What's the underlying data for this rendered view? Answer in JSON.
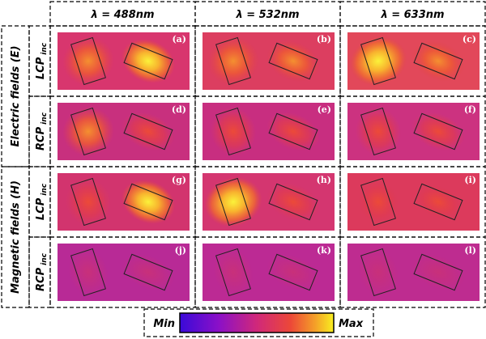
{
  "columns": [
    "λ = 488nm",
    "λ = 532nm",
    "λ = 633nm"
  ],
  "groups": [
    {
      "label": "Electric fields (E)",
      "rows": [
        {
          "label": "LCP",
          "sub": "inc",
          "panels": [
            "(a)",
            "(b)",
            "(c)"
          ]
        },
        {
          "label": "RCP",
          "sub": "inc",
          "panels": [
            "(d)",
            "(e)",
            "(f)"
          ]
        }
      ]
    },
    {
      "label": "Magnetic fields (H)",
      "rows": [
        {
          "label": "LCP",
          "sub": "inc",
          "panels": [
            "(g)",
            "(h)",
            "(i)"
          ]
        },
        {
          "label": "RCP",
          "sub": "inc",
          "panels": [
            "(j)",
            "(k)",
            "(l)"
          ]
        }
      ]
    }
  ],
  "colorbar": {
    "min": "Min",
    "max": "Max"
  }
}
